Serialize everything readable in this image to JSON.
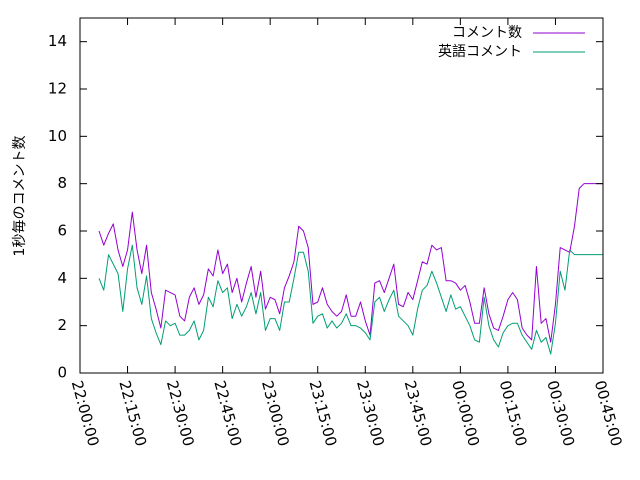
{
  "chart_data": {
    "type": "line",
    "title": "",
    "xlabel": "",
    "ylabel": "1秒毎のコメント数",
    "x_unit": "time",
    "xlim": [
      "22:00:00",
      "00:45:00"
    ],
    "ylim": [
      0,
      15
    ],
    "x_ticks": [
      "22:00:00",
      "22:15:00",
      "22:30:00",
      "22:45:00",
      "23:00:00",
      "23:15:00",
      "23:30:00",
      "23:45:00",
      "00:00:00",
      "00:15:00",
      "00:30:00",
      "00:45:00"
    ],
    "y_ticks": [
      "0",
      "2",
      "4",
      "6",
      "8",
      "10",
      "12",
      "14"
    ],
    "legend_position": "top-right",
    "x": [
      "22:06:00",
      "22:07:30",
      "22:09:00",
      "22:10:30",
      "22:12:00",
      "22:13:30",
      "22:15:00",
      "22:16:30",
      "22:18:00",
      "22:19:30",
      "22:21:00",
      "22:22:30",
      "22:24:00",
      "22:25:30",
      "22:27:00",
      "22:28:30",
      "22:30:00",
      "22:31:30",
      "22:33:00",
      "22:34:30",
      "22:36:00",
      "22:37:30",
      "22:39:00",
      "22:40:30",
      "22:42:00",
      "22:43:30",
      "22:45:00",
      "22:46:30",
      "22:48:00",
      "22:49:30",
      "22:51:00",
      "22:52:30",
      "22:54:00",
      "22:55:30",
      "22:57:00",
      "22:58:30",
      "23:00:00",
      "23:01:30",
      "23:03:00",
      "23:04:30",
      "23:06:00",
      "23:07:30",
      "23:09:00",
      "23:10:30",
      "23:12:00",
      "23:13:30",
      "23:15:00",
      "23:16:30",
      "23:18:00",
      "23:19:30",
      "23:21:00",
      "23:22:30",
      "23:24:00",
      "23:25:30",
      "23:27:00",
      "23:28:30",
      "23:30:00",
      "23:31:30",
      "23:33:00",
      "23:34:30",
      "23:36:00",
      "23:37:30",
      "23:39:00",
      "23:40:30",
      "23:42:00",
      "23:43:30",
      "23:45:00",
      "23:46:30",
      "23:48:00",
      "23:49:30",
      "23:51:00",
      "23:52:30",
      "23:54:00",
      "23:55:30",
      "23:57:00",
      "23:58:30",
      "00:00:00",
      "00:01:30",
      "00:03:00",
      "00:04:30",
      "00:06:00",
      "00:07:30",
      "00:09:00",
      "00:10:30",
      "00:12:00",
      "00:13:30",
      "00:15:00",
      "00:16:30",
      "00:18:00",
      "00:19:30",
      "00:21:00",
      "00:22:30",
      "00:24:00",
      "00:25:30",
      "00:27:00",
      "00:28:30",
      "00:30:00",
      "00:31:30",
      "00:33:00",
      "00:34:30",
      "00:36:00",
      "00:37:30",
      "00:39:00",
      "00:40:30",
      "00:42:00",
      "00:43:30",
      "00:45:00"
    ],
    "series": [
      {
        "name": "コメント数",
        "color": "#9400d3",
        "values": [
          6.0,
          5.4,
          5.9,
          6.3,
          5.2,
          4.5,
          5.2,
          6.8,
          5.2,
          4.2,
          5.4,
          3.4,
          2.7,
          1.9,
          3.5,
          3.4,
          3.3,
          2.4,
          2.2,
          3.2,
          3.6,
          2.9,
          3.3,
          4.4,
          4.1,
          5.2,
          4.2,
          4.6,
          3.4,
          4.0,
          3.0,
          3.8,
          4.5,
          3.2,
          4.3,
          2.7,
          3.2,
          3.1,
          2.5,
          3.6,
          4.1,
          4.7,
          6.2,
          6.0,
          5.3,
          2.9,
          3.0,
          3.6,
          2.9,
          2.6,
          2.4,
          2.6,
          3.3,
          2.4,
          2.4,
          3.0,
          2.2,
          1.6,
          3.8,
          3.9,
          3.4,
          4.0,
          4.6,
          2.9,
          2.8,
          3.4,
          3.1,
          3.9,
          4.7,
          4.6,
          5.4,
          5.2,
          5.3,
          3.9,
          3.9,
          3.8,
          3.5,
          3.7,
          3.0,
          2.1,
          2.1,
          3.6,
          2.5,
          1.9,
          1.8,
          2.4,
          3.1,
          3.4,
          3.1,
          1.9,
          1.6,
          1.4,
          4.5,
          2.1,
          2.3,
          1.3,
          2.9,
          5.3,
          5.2,
          5.1,
          6.2,
          7.8,
          8.0,
          8.0,
          8.0,
          8.0,
          8.0
        ]
      },
      {
        "name": "英語コメント",
        "color": "#009e73",
        "values": [
          4.0,
          3.5,
          5.0,
          4.6,
          4.2,
          2.6,
          4.4,
          5.4,
          3.6,
          2.9,
          4.1,
          2.3,
          1.7,
          1.2,
          2.2,
          2.0,
          2.1,
          1.6,
          1.6,
          1.8,
          2.2,
          1.4,
          1.8,
          3.2,
          2.8,
          3.9,
          3.4,
          3.6,
          2.3,
          2.9,
          2.4,
          2.8,
          3.4,
          2.5,
          3.4,
          1.8,
          2.3,
          2.3,
          1.8,
          3.0,
          3.0,
          4.0,
          5.1,
          5.1,
          4.3,
          2.1,
          2.4,
          2.5,
          1.9,
          2.2,
          1.9,
          2.1,
          2.5,
          2.0,
          2.0,
          1.9,
          1.7,
          1.4,
          3.0,
          3.2,
          2.6,
          3.1,
          3.5,
          2.4,
          2.2,
          2.0,
          1.6,
          2.7,
          3.5,
          3.7,
          4.3,
          3.8,
          3.2,
          2.6,
          3.3,
          2.7,
          2.8,
          2.4,
          2.0,
          1.4,
          1.3,
          3.2,
          2.0,
          1.4,
          1.1,
          1.7,
          2.0,
          2.1,
          2.1,
          1.6,
          1.3,
          1.0,
          1.8,
          1.3,
          1.5,
          0.8,
          2.1,
          4.3,
          3.5,
          5.2,
          5.0,
          5.0,
          5.0,
          5.0,
          5.0,
          5.0,
          5.0
        ]
      }
    ],
    "grid": false,
    "axis_color": "#000000"
  }
}
